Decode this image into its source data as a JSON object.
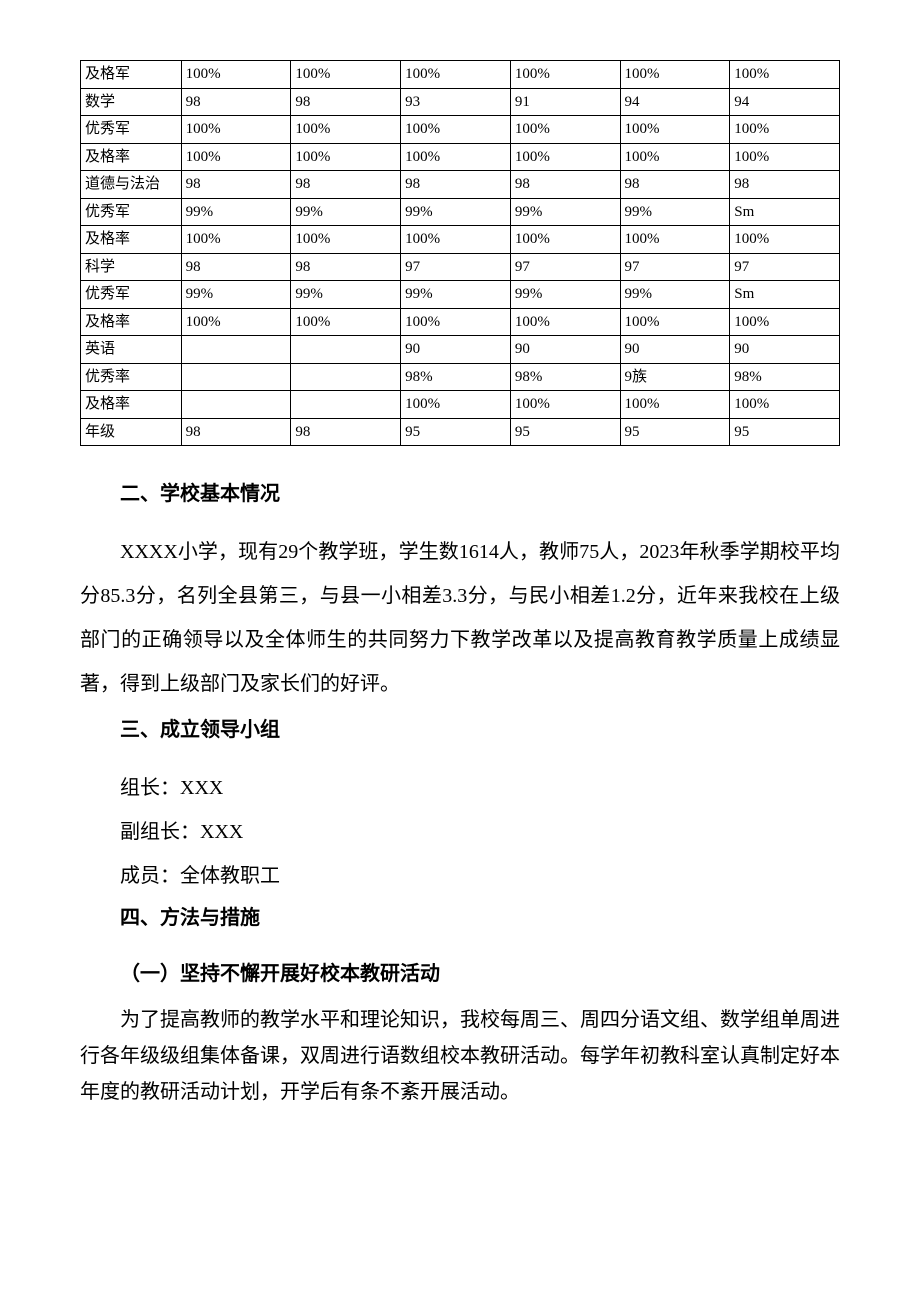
{
  "table": {
    "columns_count": 7,
    "rows": [
      [
        "及格军",
        "100%",
        "100%",
        "100%",
        "100%",
        "100%",
        "100%"
      ],
      [
        "数学",
        "98",
        "98",
        "93",
        "91",
        "94",
        "94"
      ],
      [
        "优秀军",
        "100%",
        "100%",
        "100%",
        "100%",
        "100%",
        "100%"
      ],
      [
        "及格率",
        "100%",
        "100%",
        "100%",
        "100%",
        "100%",
        "100%"
      ],
      [
        "道德与法治",
        "98",
        "98",
        "98",
        "98",
        "98",
        "98"
      ],
      [
        "优秀军",
        "99%",
        "99%",
        "99%",
        "99%",
        "99%",
        "Sm"
      ],
      [
        "及格率",
        "100%",
        "100%",
        "100%",
        "100%",
        "100%",
        "100%"
      ],
      [
        "科学",
        "98",
        "98",
        "97",
        "97",
        "97",
        "97"
      ],
      [
        "优秀军",
        "99%",
        "99%",
        "99%",
        "99%",
        "99%",
        "Sm"
      ],
      [
        "及格率",
        "100%",
        "100%",
        "100%",
        "100%",
        "100%",
        "100%"
      ],
      [
        "英语",
        "",
        "",
        "90",
        "90",
        "90",
        "90"
      ],
      [
        "优秀率",
        "",
        "",
        "98%",
        "98%",
        "9族",
        "98%"
      ],
      [
        "及格率",
        "",
        "",
        "100%",
        "100%",
        "100%",
        "100%"
      ],
      [
        "年级",
        "98",
        "98",
        "95",
        "95",
        "95",
        "95"
      ]
    ],
    "border_color": "#000000",
    "cell_fontsize": 15,
    "background": "#ffffff"
  },
  "sections": {
    "s2": {
      "heading": "二、学校基本情况",
      "para": "XXXX小学，现有29个教学班，学生数1614人，教师75人，2023年秋季学期校平均分85.3分，名列全县第三，与县一小相差3.3分，与民小相差1.2分，近年来我校在上级部门的正确领导以及全体师生的共同努力下教学改革以及提高教育教学质量上成绩显著，得到上级部门及家长们的好评。"
    },
    "s3": {
      "heading": "三、成立领导小组",
      "line1": "组长：XXX",
      "line2": "副组长：XXX",
      "line3": "成员：全体教职工"
    },
    "s4": {
      "heading": "四、方法与措施",
      "sub1": "（一）坚持不懈开展好校本教研活动",
      "para1": "为了提高教师的教学水平和理论知识，我校每周三、周四分语文组、数学组单周进行各年级级组集体备课，双周进行语数组校本教研活动。每学年初教科室认真制定好本年度的教研活动计划，开学后有条不紊开展活动。"
    }
  },
  "typography": {
    "body_font": "SimSun",
    "heading_font": "SimHei",
    "body_fontsize": 20,
    "heading_fontsize": 20,
    "line_height_body": 2.2,
    "line_height_tight": 1.8,
    "text_color": "#000000",
    "background_color": "#ffffff"
  }
}
